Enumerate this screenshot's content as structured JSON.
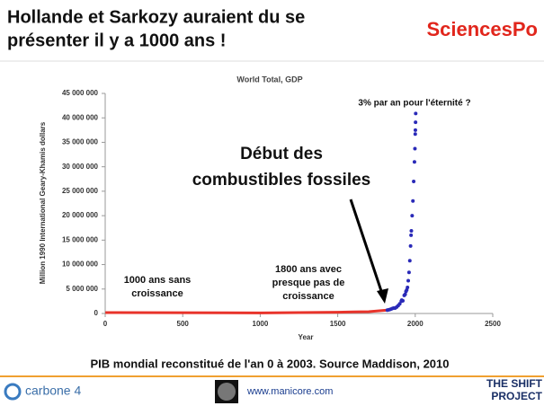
{
  "header": {
    "title_lines": [
      "Hollande et Sarkozy auraient du se",
      "présenter il y a 1000 ans !"
    ],
    "logo": "SciencesPo"
  },
  "chart_data": {
    "type": "scatter",
    "title": "World Total, GDP",
    "x_label": "Year",
    "y_label": "Million 1990 International Geary-Khamis dollars",
    "xlim": [
      0,
      2500
    ],
    "xticks": [
      0,
      500,
      1000,
      1500,
      2000,
      2500
    ],
    "ylim": [
      0,
      45000000
    ],
    "yticks": [
      0,
      {
        "value": 5000000,
        "label": "5 000 000"
      },
      {
        "value": 10000000,
        "label": "10 000 000"
      },
      {
        "value": 15000000,
        "label": "15 000 000"
      },
      {
        "value": 20000000,
        "label": "20 000 000"
      },
      {
        "value": 25000000,
        "label": "25 000 000"
      },
      {
        "value": 30000000,
        "label": "30 000 000"
      },
      {
        "value": 35000000,
        "label": "35 000 000"
      },
      {
        "value": 40000000,
        "label": "40 000 000"
      },
      {
        "value": 45000000,
        "label": "45 000 000"
      }
    ],
    "series": [
      {
        "color": "#e8332a",
        "style": "line",
        "x": [
          1,
          1000,
          1500,
          1600,
          1700,
          1820
        ],
        "values": [
          182000,
          121000,
          248000,
          331000,
          371000,
          694000
        ]
      },
      {
        "color": "#2a2ab8",
        "style": "points",
        "x": [
          1820,
          1830,
          1840,
          1850,
          1860,
          1870,
          1880,
          1890,
          1900,
          1910,
          1913,
          1920,
          1929,
          1935,
          1940,
          1945,
          1950,
          1955,
          1960,
          1965,
          1970,
          1973,
          1975,
          1980,
          1985,
          1990,
          1995,
          1998,
          2000,
          2001,
          2002,
          2003
        ],
        "values": [
          694000,
          760000,
          850000,
          980000,
          1100000,
          1110000,
          1300000,
          1600000,
          1973000,
          2500000,
          2733000,
          2600000,
          3700000,
          3900000,
          4500000,
          4800000,
          5336000,
          6700000,
          8400000,
          10800000,
          13800000,
          16000000,
          16900000,
          20000000,
          23000000,
          27000000,
          31000000,
          33700000,
          36700000,
          37500000,
          39100000,
          40900000
        ]
      }
    ],
    "annotations": [
      {
        "lines": [
          "3% par an pour l'éternité ?"
        ]
      },
      {
        "lines": [
          "Début des",
          "combustibles fossiles"
        ]
      },
      {
        "lines": [
          "1000 ans sans",
          "croissance"
        ]
      },
      {
        "lines": [
          "1800 ans avec",
          "presque pas de",
          "croissance"
        ]
      }
    ]
  },
  "caption": "PIB mondial reconstitué de l'an 0 à 2003. Source Maddison, 2010",
  "footer": {
    "left": "carbone 4",
    "center": "www.manicore.com",
    "right_lines": [
      "THE SHIFT",
      "PROJECT"
    ]
  }
}
